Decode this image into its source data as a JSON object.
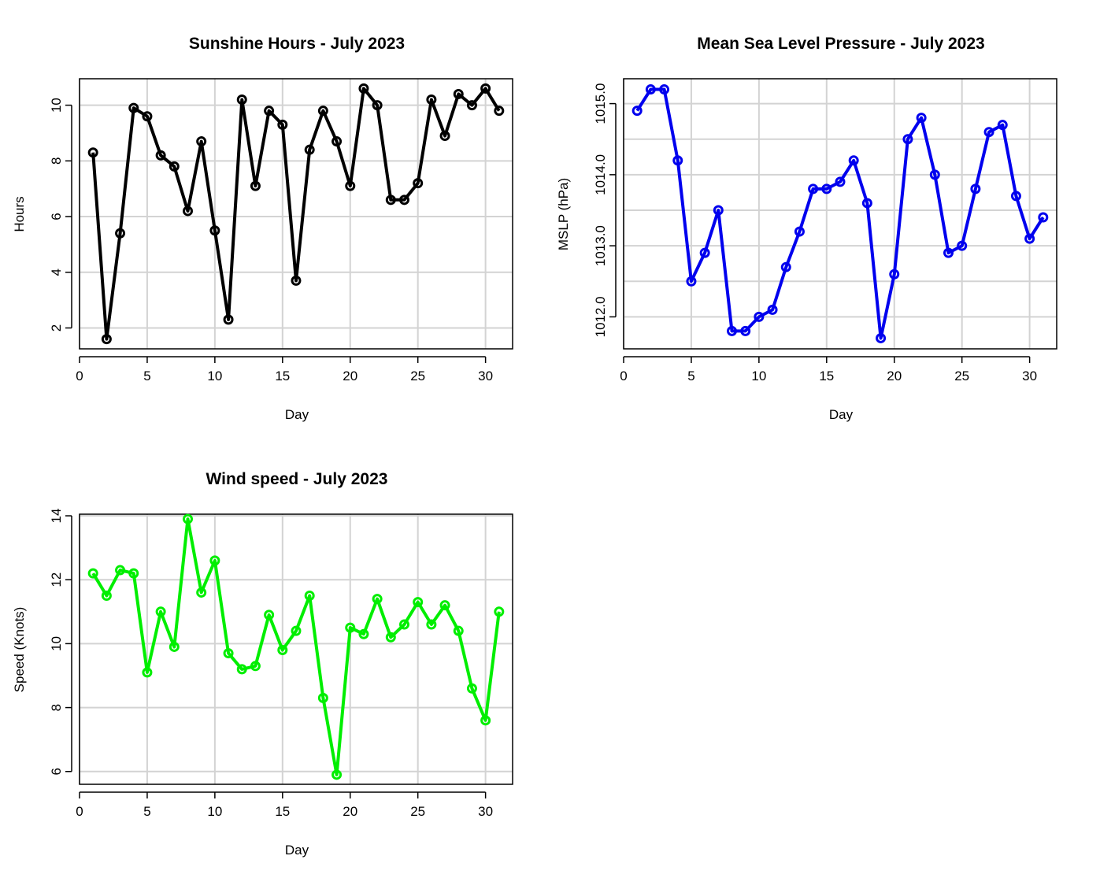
{
  "chart_data": [
    {
      "type": "line",
      "title": "Sunshine Hours - July 2023",
      "xlabel": "Day",
      "ylabel": "Hours",
      "xlim": [
        0,
        32
      ],
      "ylim": [
        1.25,
        10.95
      ],
      "xticks": [
        0,
        5,
        10,
        15,
        20,
        25,
        30
      ],
      "xtick_labels": [
        "0",
        "5",
        "10",
        "15",
        "20",
        "25",
        "30"
      ],
      "yticks": [
        2,
        4,
        6,
        8,
        10
      ],
      "ytick_labels": [
        "2",
        "4",
        "6",
        "8",
        "10"
      ],
      "grid": true,
      "color": "#000000",
      "series": [
        {
          "x": [
            1,
            2,
            3,
            4,
            5,
            6,
            7,
            8,
            9,
            10,
            11,
            12,
            13,
            14,
            15,
            16,
            17,
            18,
            19,
            20,
            21,
            22,
            23,
            24,
            25,
            26,
            27,
            28,
            29,
            30,
            31
          ],
          "values": [
            8.3,
            1.6,
            5.4,
            9.9,
            9.6,
            8.2,
            7.8,
            6.2,
            8.7,
            5.5,
            2.3,
            10.2,
            7.1,
            9.8,
            9.3,
            3.7,
            8.4,
            9.8,
            8.7,
            7.1,
            10.6,
            10.0,
            6.6,
            6.6,
            7.2,
            10.2,
            8.9,
            10.4,
            10.0,
            10.6,
            9.8
          ]
        }
      ]
    },
    {
      "type": "line",
      "title": "Mean Sea Level Pressure - July 2023",
      "xlabel": "Day",
      "ylabel": "MSLP (hPa)",
      "xlim": [
        0,
        32
      ],
      "ylim": [
        1011.55,
        1015.35
      ],
      "xticks": [
        0,
        5,
        10,
        15,
        20,
        25,
        30
      ],
      "xtick_labels": [
        "0",
        "5",
        "10",
        "15",
        "20",
        "25",
        "30"
      ],
      "yticks": [
        1012.0,
        1013.0,
        1014.0,
        1015.0
      ],
      "ytick_labels": [
        "1012.0",
        "1013.0",
        "1014.0",
        "1015.0"
      ],
      "grid_y": [
        1012.0,
        1012.5,
        1013.0,
        1013.5,
        1014.0,
        1014.5,
        1015.0
      ],
      "grid": true,
      "color": "#0000ee",
      "series": [
        {
          "x": [
            1,
            2,
            3,
            4,
            5,
            6,
            7,
            8,
            9,
            10,
            11,
            12,
            13,
            14,
            15,
            16,
            17,
            18,
            19,
            20,
            21,
            22,
            23,
            24,
            25,
            26,
            27,
            28,
            29,
            30,
            31
          ],
          "values": [
            1014.9,
            1015.2,
            1015.2,
            1014.2,
            1012.5,
            1012.9,
            1013.5,
            1011.8,
            1011.8,
            1012.0,
            1012.1,
            1012.7,
            1013.2,
            1013.8,
            1013.8,
            1013.9,
            1014.2,
            1013.6,
            1011.7,
            1012.6,
            1014.5,
            1014.8,
            1014.0,
            1012.9,
            1013.0,
            1013.8,
            1014.6,
            1014.7,
            1013.7,
            1013.1,
            1013.4
          ]
        }
      ]
    },
    {
      "type": "line",
      "title": "Wind speed - July 2023",
      "xlabel": "Day",
      "ylabel": "Speed (Knots)",
      "xlim": [
        0,
        32
      ],
      "ylim": [
        5.6,
        14.05
      ],
      "xticks": [
        0,
        5,
        10,
        15,
        20,
        25,
        30
      ],
      "xtick_labels": [
        "0",
        "5",
        "10",
        "15",
        "20",
        "25",
        "30"
      ],
      "yticks": [
        6,
        8,
        10,
        12,
        14
      ],
      "ytick_labels": [
        "6",
        "8",
        "10",
        "12",
        "14"
      ],
      "grid": true,
      "color": "#00ee00",
      "series": [
        {
          "x": [
            1,
            2,
            3,
            4,
            5,
            6,
            7,
            8,
            9,
            10,
            11,
            12,
            13,
            14,
            15,
            16,
            17,
            18,
            19,
            20,
            21,
            22,
            23,
            24,
            25,
            26,
            27,
            28,
            29,
            30,
            31
          ],
          "values": [
            12.2,
            11.5,
            12.3,
            12.2,
            9.1,
            11.0,
            9.9,
            13.9,
            11.6,
            12.6,
            9.7,
            9.2,
            9.3,
            10.9,
            9.8,
            10.4,
            11.5,
            8.3,
            5.9,
            10.5,
            10.3,
            11.4,
            10.2,
            10.6,
            11.3,
            10.6,
            11.2,
            10.4,
            8.6,
            7.6,
            11.0
          ]
        }
      ]
    }
  ]
}
